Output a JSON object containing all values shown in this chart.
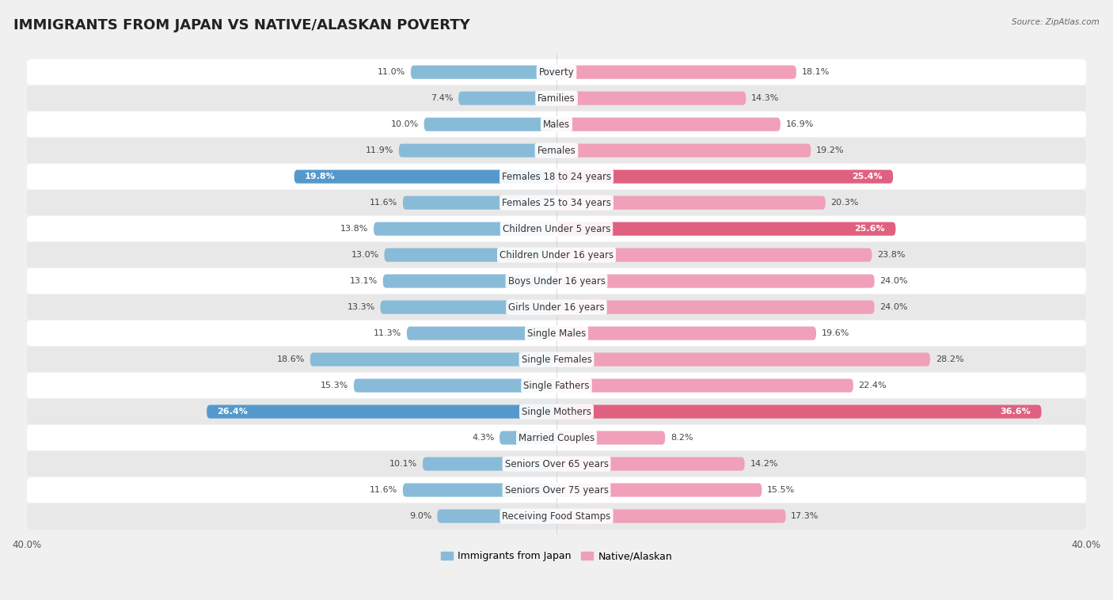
{
  "title": "IMMIGRANTS FROM JAPAN VS NATIVE/ALASKAN POVERTY",
  "source": "Source: ZipAtlas.com",
  "categories": [
    "Poverty",
    "Families",
    "Males",
    "Females",
    "Females 18 to 24 years",
    "Females 25 to 34 years",
    "Children Under 5 years",
    "Children Under 16 years",
    "Boys Under 16 years",
    "Girls Under 16 years",
    "Single Males",
    "Single Females",
    "Single Fathers",
    "Single Mothers",
    "Married Couples",
    "Seniors Over 65 years",
    "Seniors Over 75 years",
    "Receiving Food Stamps"
  ],
  "japan_values": [
    11.0,
    7.4,
    10.0,
    11.9,
    19.8,
    11.6,
    13.8,
    13.0,
    13.1,
    13.3,
    11.3,
    18.6,
    15.3,
    26.4,
    4.3,
    10.1,
    11.6,
    9.0
  ],
  "native_values": [
    18.1,
    14.3,
    16.9,
    19.2,
    25.4,
    20.3,
    25.6,
    23.8,
    24.0,
    24.0,
    19.6,
    28.2,
    22.4,
    36.6,
    8.2,
    14.2,
    15.5,
    17.3
  ],
  "japan_color": "#88bbd8",
  "native_color": "#f0a0b8",
  "japan_highlight_color": "#5599cc",
  "native_highlight_color": "#e06080",
  "japan_label": "Immigrants from Japan",
  "native_label": "Native/Alaskan",
  "xlim": 40.0,
  "bar_height": 0.52,
  "background_color": "#f0f0f0",
  "row_colors": [
    "#ffffff",
    "#e8e8e8"
  ],
  "title_fontsize": 13,
  "label_fontsize": 8.5,
  "value_fontsize": 8.0,
  "axis_fontsize": 8.5,
  "highlight_japan": [
    4,
    13
  ],
  "highlight_native": [
    4,
    6,
    13
  ]
}
